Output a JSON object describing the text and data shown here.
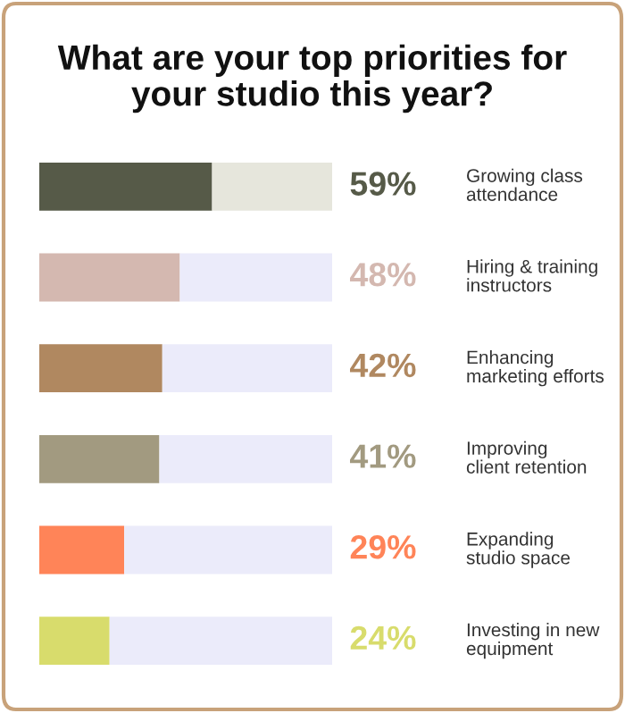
{
  "chart_data": {
    "type": "bar",
    "orientation": "horizontal",
    "stacked": true,
    "title": "What are your top priorities for\nyour studio this year?",
    "categories": [
      "Growing class\nattendance",
      "Hiring & training\ninstructors",
      "Enhancing\nmarketing efforts",
      "Improving\nclient retention",
      "Expanding\nstudio space",
      "Investing in new\nequipment"
    ],
    "xlim": [
      0,
      100
    ],
    "tick_labels": false,
    "series": [
      {
        "colors": [
          "#565a48",
          "#d4b8b0",
          "#b08860",
          "#a29a80",
          "#ff8458",
          "#d8dc6c"
        ],
        "values": [
          59,
          48,
          42,
          41,
          29,
          24
        ],
        "value_labels": [
          "59%",
          "48%",
          "42%",
          "41%",
          "29%",
          "24%"
        ]
      },
      {
        "colors": [
          "#e6e6dc",
          "#ebebfa",
          "#ebebfa",
          "#ebebfa",
          "#ebebfa",
          "#ebebfa"
        ],
        "values": [
          41,
          52,
          58,
          59,
          71,
          76
        ]
      }
    ]
  }
}
